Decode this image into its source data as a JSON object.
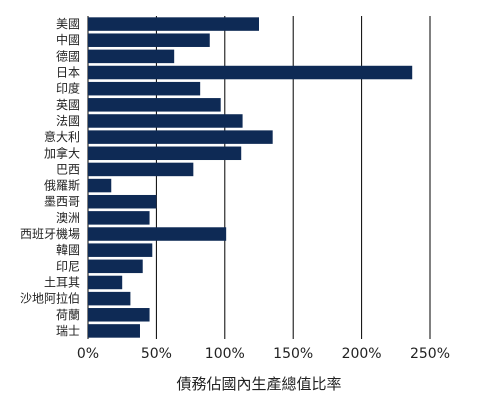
{
  "chart_data": {
    "type": "bar",
    "orientation": "horizontal",
    "categories": [
      "美國",
      "中國",
      "德國",
      "日本",
      "印度",
      "英國",
      "法國",
      "意大利",
      "加拿大",
      "巴西",
      "俄羅斯",
      "墨西哥",
      "澳洲",
      "西班牙機場",
      "韓國",
      "印尼",
      "土耳其",
      "沙地阿拉伯",
      "荷蘭",
      "瑞士"
    ],
    "values": [
      125,
      89,
      63,
      237,
      82,
      97,
      113,
      135,
      112,
      77,
      17,
      50,
      45,
      101,
      47,
      40,
      25,
      31,
      45,
      38
    ],
    "title": "",
    "xlabel": "債務佔國內生產總值比率",
    "ylabel": "",
    "xlim": [
      0,
      250
    ],
    "xticks": [
      0,
      50,
      100,
      150,
      200,
      250
    ],
    "xtick_labels": [
      "0%",
      "50%",
      "100%",
      "150%",
      "200%",
      "250%"
    ],
    "grid": "vertical",
    "legend": "none",
    "bar_color": "#0e2a55",
    "grid_color": "#000000"
  }
}
